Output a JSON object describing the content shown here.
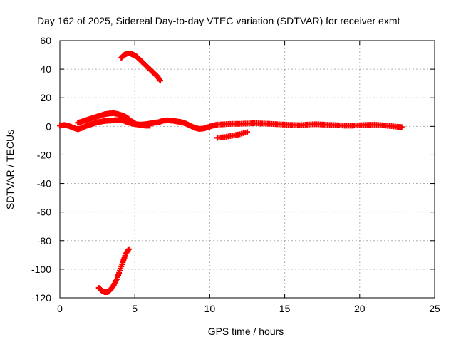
{
  "chart_data": {
    "type": "scatter",
    "title": "Day 162 of 2025, Sidereal Day-to-day VTEC variation (SDTVAR) for receiver exmt",
    "xlabel": "GPS time / hours",
    "ylabel": "SDTVAR / TECUs",
    "xlim": [
      0,
      25
    ],
    "ylim": [
      -120,
      60
    ],
    "xticks": [
      0,
      5,
      10,
      15,
      20,
      25
    ],
    "yticks": [
      60,
      40,
      20,
      0,
      -20,
      -40,
      -60,
      -80,
      -100,
      -120
    ],
    "grid": true,
    "marker": "+",
    "color": "#ff0000",
    "series": [
      {
        "name": "main",
        "points": [
          [
            0.0,
            0.5
          ],
          [
            0.3,
            1.0
          ],
          [
            0.6,
            0.3
          ],
          [
            0.9,
            -1.0
          ],
          [
            1.2,
            -2.0
          ],
          [
            1.5,
            -1.0
          ],
          [
            1.8,
            0.5
          ],
          [
            2.1,
            1.5
          ],
          [
            2.4,
            2.5
          ],
          [
            2.7,
            3.2
          ],
          [
            3.0,
            3.8
          ],
          [
            3.3,
            4.0
          ],
          [
            3.6,
            4.2
          ],
          [
            3.9,
            4.5
          ],
          [
            4.2,
            4.2
          ],
          [
            4.5,
            3.0
          ],
          [
            4.8,
            2.0
          ],
          [
            5.1,
            1.5
          ],
          [
            5.4,
            1.2
          ],
          [
            5.7,
            1.5
          ],
          [
            6.0,
            2.0
          ],
          [
            6.3,
            2.5
          ],
          [
            6.6,
            3.0
          ],
          [
            6.9,
            4.0
          ],
          [
            7.2,
            4.2
          ],
          [
            7.5,
            4.0
          ],
          [
            7.8,
            3.5
          ],
          [
            8.1,
            3.0
          ],
          [
            8.4,
            2.0
          ],
          [
            8.7,
            0.5
          ],
          [
            9.0,
            -1.0
          ],
          [
            9.3,
            -1.8
          ],
          [
            9.6,
            -1.5
          ],
          [
            9.9,
            -0.5
          ],
          [
            10.2,
            0.5
          ],
          [
            10.5,
            1.2
          ],
          [
            11.0,
            1.5
          ],
          [
            11.5,
            1.8
          ],
          [
            12.0,
            1.8
          ],
          [
            12.5,
            2.0
          ],
          [
            13.0,
            2.2
          ],
          [
            13.5,
            2.0
          ],
          [
            14.0,
            1.8
          ],
          [
            14.5,
            1.5
          ],
          [
            15.0,
            1.2
          ],
          [
            15.5,
            1.0
          ],
          [
            16.0,
            0.8
          ],
          [
            16.5,
            1.2
          ],
          [
            17.0,
            1.5
          ],
          [
            17.5,
            1.3
          ],
          [
            18.0,
            1.0
          ],
          [
            18.5,
            0.8
          ],
          [
            19.0,
            0.5
          ],
          [
            19.5,
            0.5
          ],
          [
            20.0,
            0.8
          ],
          [
            20.5,
            1.0
          ],
          [
            21.0,
            1.2
          ],
          [
            21.5,
            0.8
          ],
          [
            22.0,
            0.3
          ],
          [
            22.5,
            -0.3
          ],
          [
            22.8,
            -0.5
          ]
        ]
      },
      {
        "name": "upper-arc",
        "points": [
          [
            1.2,
            2.5
          ],
          [
            1.5,
            3.5
          ],
          [
            1.8,
            4.5
          ],
          [
            2.1,
            5.5
          ],
          [
            2.4,
            6.5
          ],
          [
            2.7,
            7.5
          ],
          [
            3.0,
            8.5
          ],
          [
            3.3,
            9.0
          ],
          [
            3.6,
            9.2
          ],
          [
            3.9,
            8.5
          ],
          [
            4.2,
            7.5
          ],
          [
            4.5,
            6.0
          ],
          [
            4.8,
            3.5
          ],
          [
            5.1,
            1.5
          ],
          [
            5.4,
            0.8
          ],
          [
            5.7,
            0.5
          ],
          [
            6.0,
            0.5
          ]
        ]
      },
      {
        "name": "high-arc",
        "points": [
          [
            4.1,
            48
          ],
          [
            4.3,
            50
          ],
          [
            4.5,
            51
          ],
          [
            4.7,
            51
          ],
          [
            4.9,
            50
          ],
          [
            5.1,
            49
          ],
          [
            5.3,
            47
          ],
          [
            5.5,
            45
          ],
          [
            5.7,
            43
          ],
          [
            5.9,
            41
          ],
          [
            6.1,
            39
          ],
          [
            6.3,
            37
          ],
          [
            6.5,
            35
          ],
          [
            6.7,
            32
          ]
        ]
      },
      {
        "name": "low-arc",
        "points": [
          [
            2.6,
            -113
          ],
          [
            2.8,
            -115
          ],
          [
            3.0,
            -116
          ],
          [
            3.2,
            -116
          ],
          [
            3.4,
            -114
          ],
          [
            3.6,
            -111
          ],
          [
            3.8,
            -107
          ],
          [
            4.0,
            -101
          ],
          [
            4.2,
            -95
          ],
          [
            4.4,
            -89
          ],
          [
            4.6,
            -86
          ]
        ]
      },
      {
        "name": "late-segment",
        "points": [
          [
            10.5,
            -8.0
          ],
          [
            11.0,
            -7.5
          ],
          [
            11.5,
            -6.5
          ],
          [
            12.0,
            -5.5
          ],
          [
            12.5,
            -4.0
          ]
        ]
      }
    ]
  }
}
